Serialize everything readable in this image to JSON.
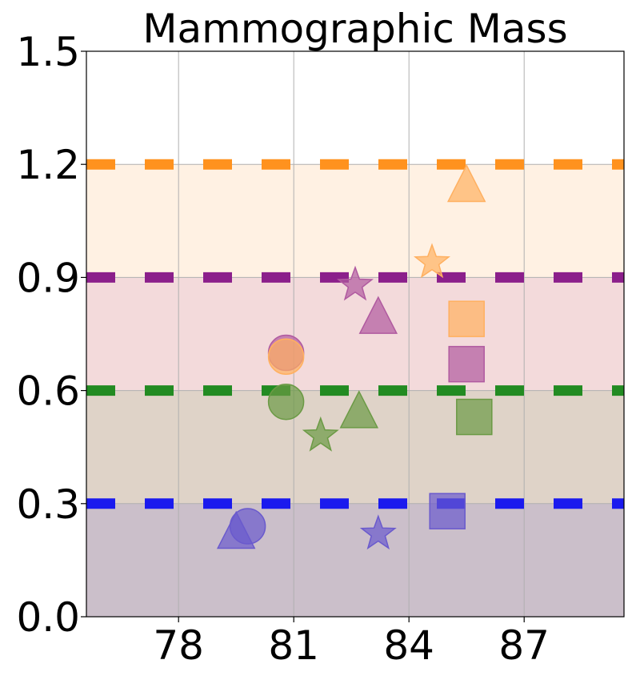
{
  "chart_data": {
    "type": "scatter",
    "title": "Mammographic Mass",
    "xlabel": "",
    "ylabel": "",
    "xlim": [
      75.6,
      89.6
    ],
    "ylim": [
      0,
      1.5
    ],
    "x_ticks": [
      "78",
      "81",
      "84",
      "87"
    ],
    "y_ticks": [
      "0.0",
      "0.3",
      "0.6",
      "0.9",
      "1.2",
      "1.5"
    ],
    "grid": true,
    "bands": [
      {
        "from": 0.0,
        "to": 0.3,
        "color": "#cbbfca"
      },
      {
        "from": 0.3,
        "to": 0.6,
        "color": "#dfd3c8"
      },
      {
        "from": 0.6,
        "to": 0.9,
        "color": "#f3dadb"
      },
      {
        "from": 0.9,
        "to": 1.2,
        "color": "#fff1e3"
      }
    ],
    "thresholds": [
      {
        "y": 0.3,
        "color": "#1a1aee"
      },
      {
        "y": 0.6,
        "color": "#228b22"
      },
      {
        "y": 0.9,
        "color": "#8b1f8b"
      },
      {
        "y": 1.2,
        "color": "#ff921e"
      }
    ],
    "series": [
      {
        "color": "#6a5acd",
        "points": [
          {
            "x": 79.5,
            "y": 0.22,
            "marker": "triangle"
          },
          {
            "x": 79.8,
            "y": 0.24,
            "marker": "circle"
          },
          {
            "x": 83.2,
            "y": 0.22,
            "marker": "star"
          },
          {
            "x": 85.0,
            "y": 0.28,
            "marker": "square"
          }
        ]
      },
      {
        "color": "#6b9a45",
        "points": [
          {
            "x": 80.8,
            "y": 0.57,
            "marker": "circle"
          },
          {
            "x": 81.7,
            "y": 0.48,
            "marker": "star"
          },
          {
            "x": 82.7,
            "y": 0.54,
            "marker": "triangle"
          },
          {
            "x": 85.7,
            "y": 0.53,
            "marker": "square"
          }
        ]
      },
      {
        "color": "#b05aa0",
        "points": [
          {
            "x": 80.8,
            "y": 0.7,
            "marker": "circle"
          },
          {
            "x": 82.6,
            "y": 0.88,
            "marker": "star"
          },
          {
            "x": 83.2,
            "y": 0.79,
            "marker": "triangle"
          },
          {
            "x": 85.5,
            "y": 0.67,
            "marker": "square"
          }
        ]
      },
      {
        "color": "#ffb060",
        "points": [
          {
            "x": 80.8,
            "y": 0.69,
            "marker": "circle"
          },
          {
            "x": 84.6,
            "y": 0.94,
            "marker": "star"
          },
          {
            "x": 85.5,
            "y": 0.79,
            "marker": "square"
          },
          {
            "x": 85.5,
            "y": 1.14,
            "marker": "triangle"
          }
        ]
      }
    ]
  }
}
